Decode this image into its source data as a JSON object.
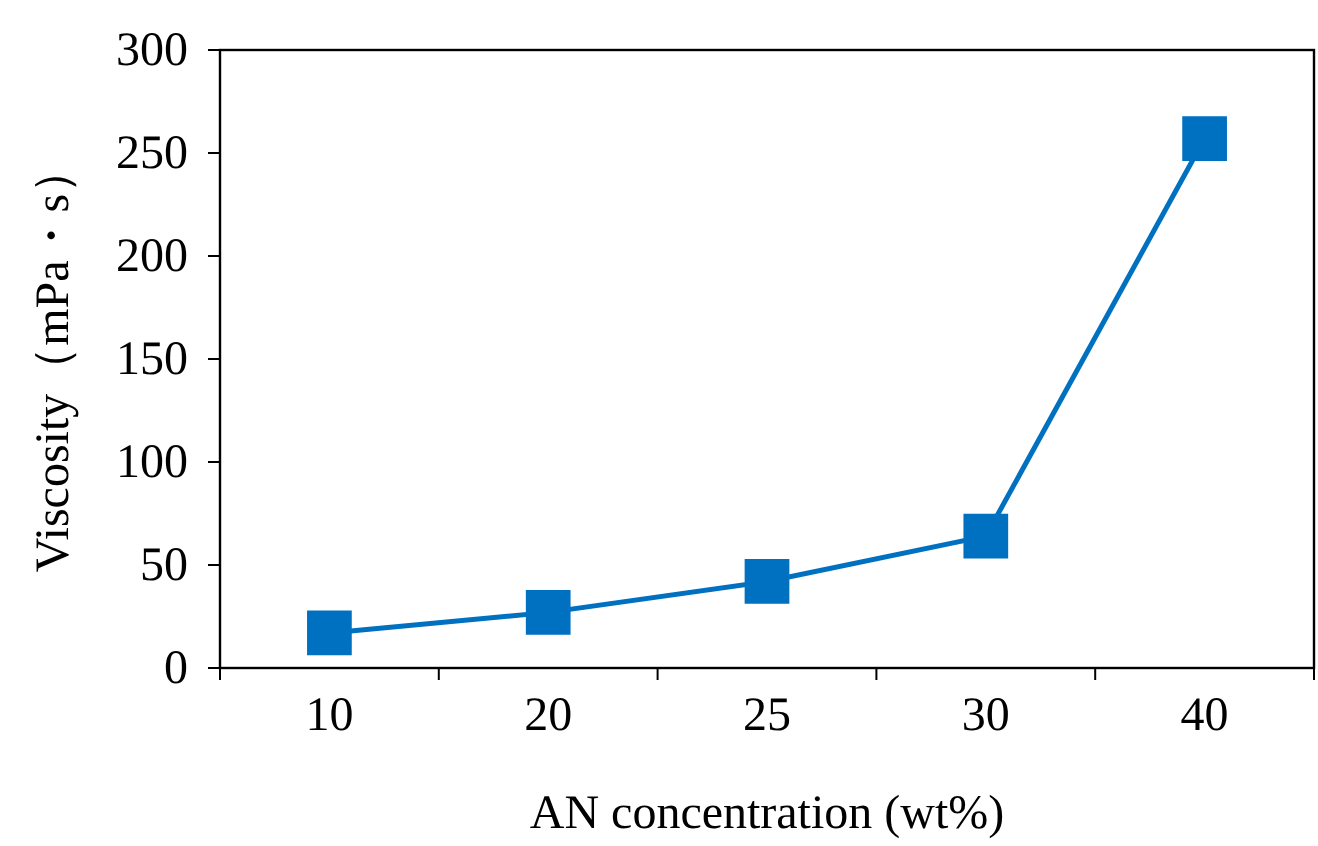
{
  "chart_data": {
    "type": "line",
    "xlabel": "AN concentration (wt%)",
    "ylabel": "Viscosity（mPa・s）",
    "categories": [
      "10",
      "20",
      "25",
      "30",
      "40"
    ],
    "series": [
      {
        "color": "#0070c0",
        "values": [
          17,
          27,
          42,
          64,
          257
        ]
      }
    ],
    "ylim": [
      0,
      300
    ],
    "yticks": [
      0,
      50,
      100,
      150,
      200,
      250,
      300
    ],
    "marker": "square",
    "grid": false
  }
}
